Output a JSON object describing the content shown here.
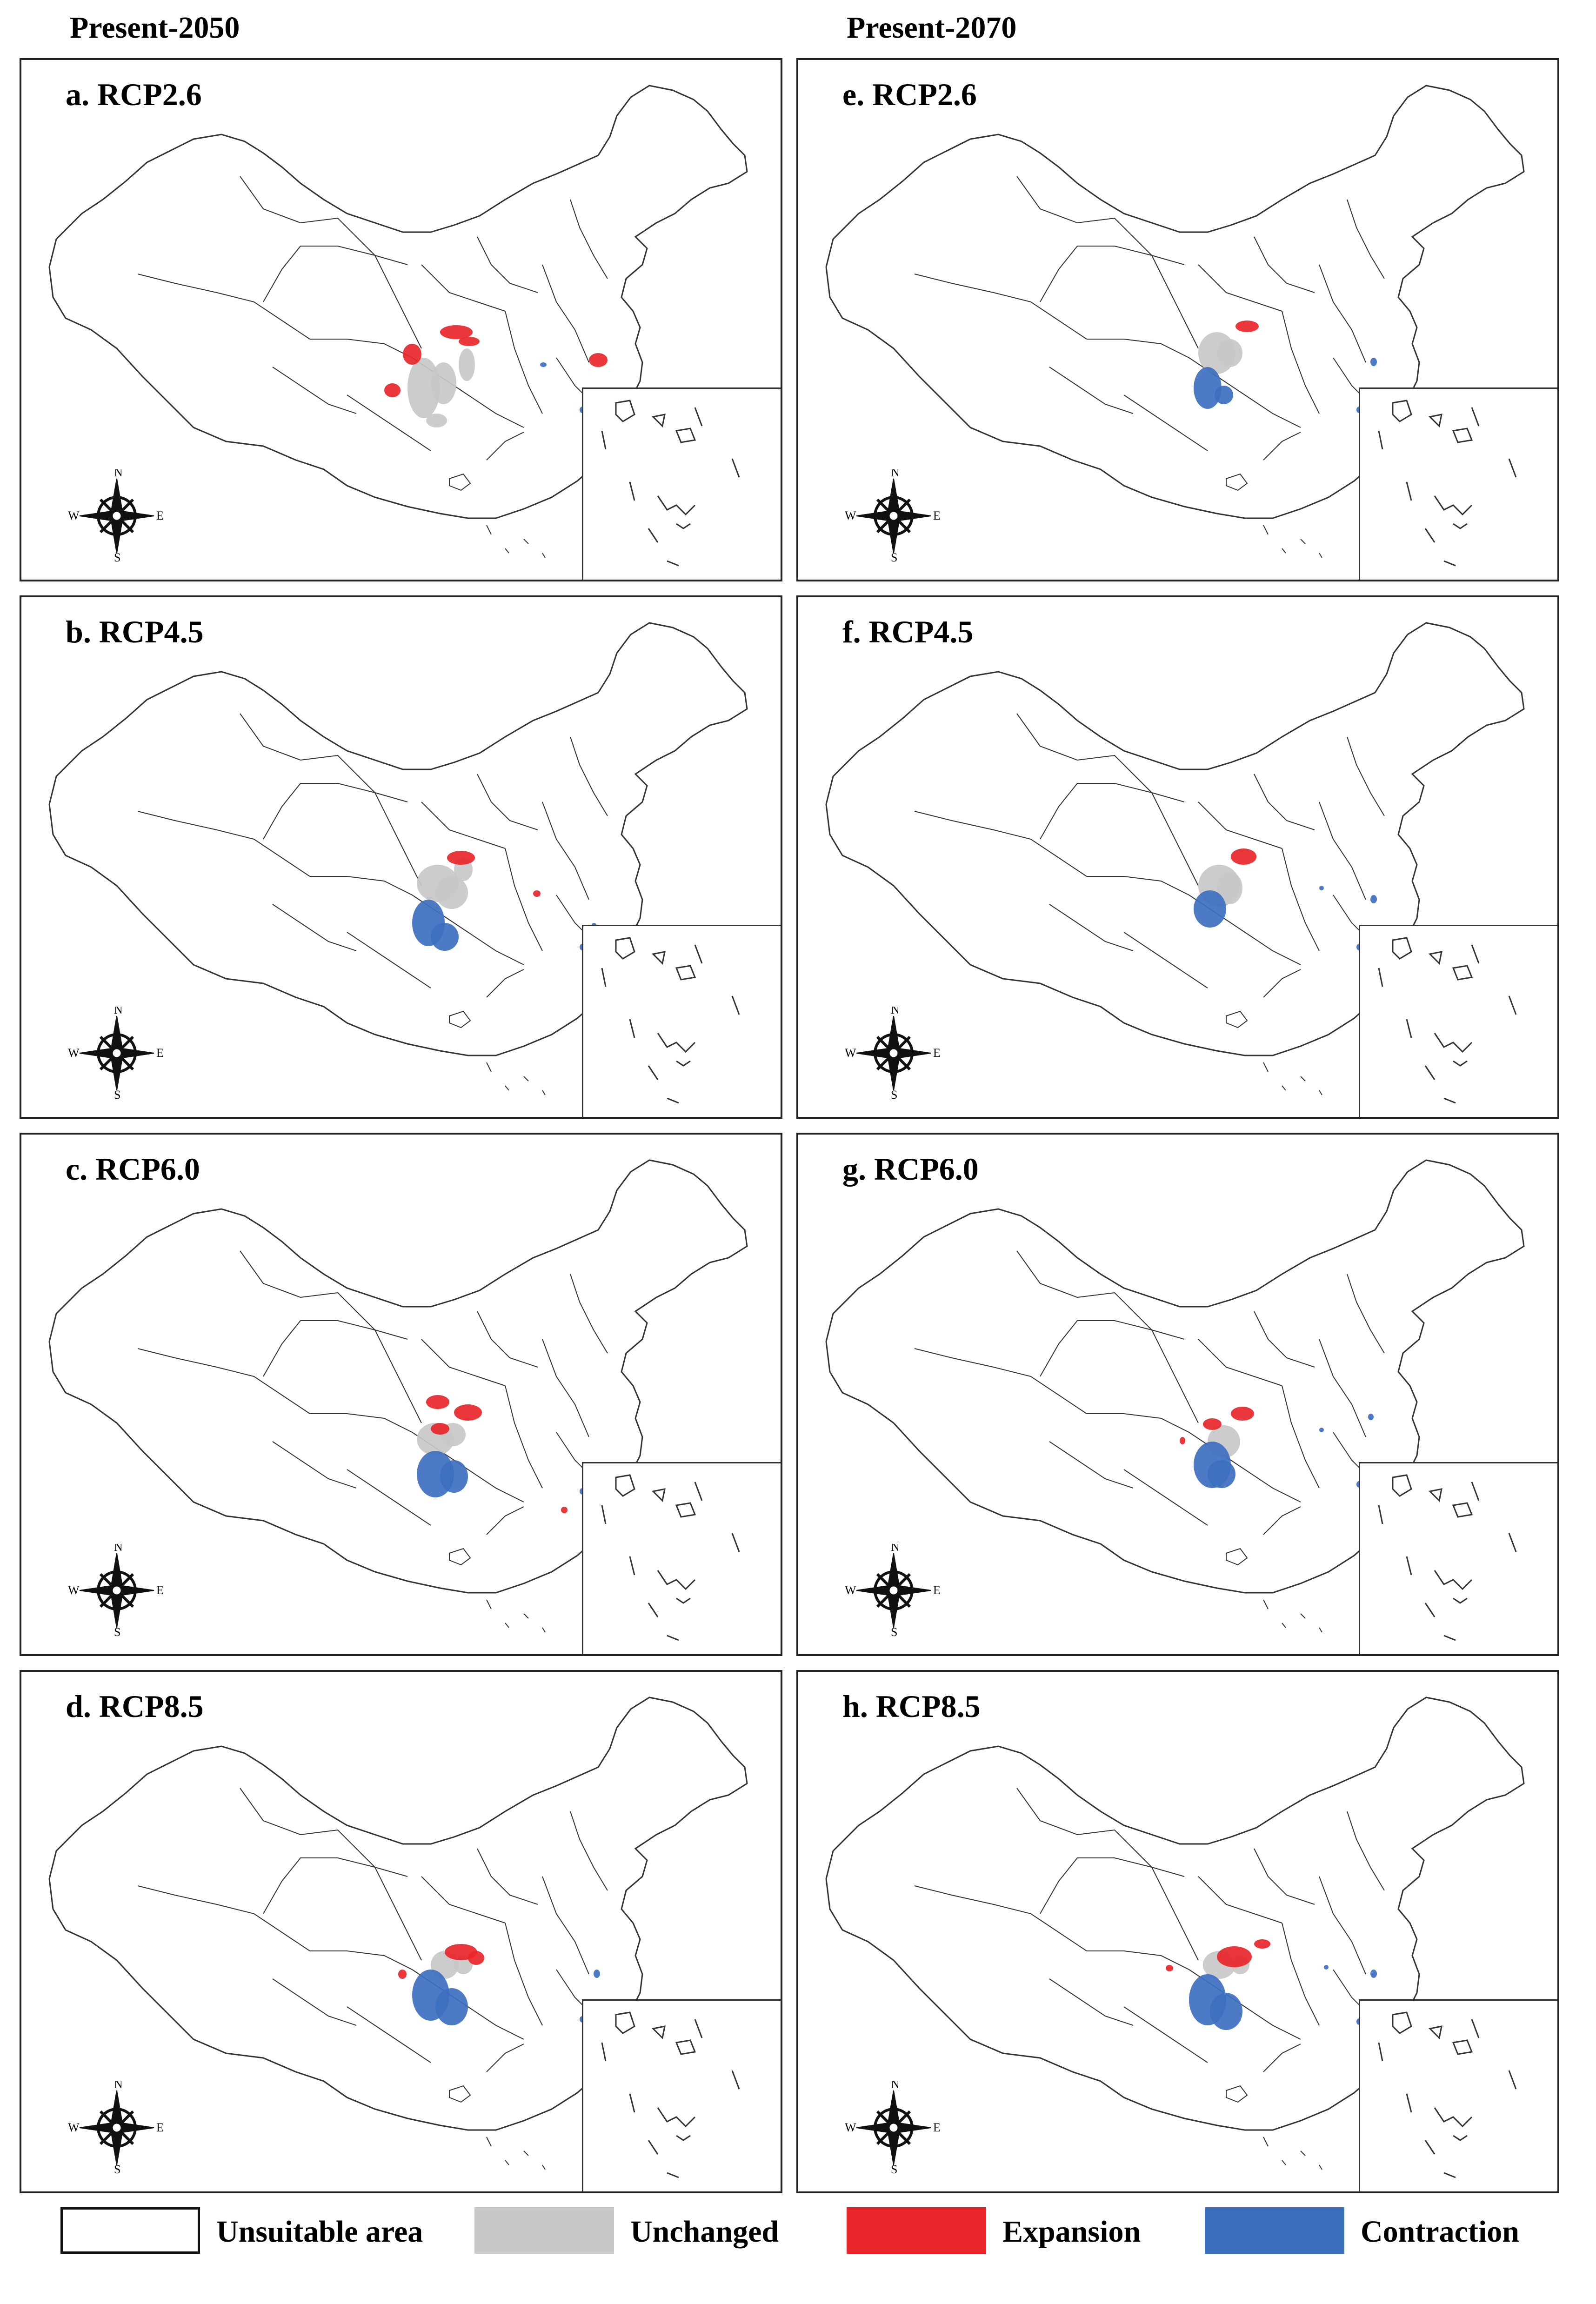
{
  "columns": {
    "left_title": "Present-2050",
    "right_title": "Present-2070"
  },
  "panels": [
    {
      "label": "a. RCP2.6",
      "scenario": "RCP2.6",
      "period": "Present-2050",
      "expansion": "moderate",
      "contraction": "small"
    },
    {
      "label": "b. RCP4.5",
      "scenario": "RCP4.5",
      "period": "Present-2050",
      "expansion": "small",
      "contraction": "moderate"
    },
    {
      "label": "c. RCP6.0",
      "scenario": "RCP6.0",
      "period": "Present-2050",
      "expansion": "moderate",
      "contraction": "moderate"
    },
    {
      "label": "d. RCP8.5",
      "scenario": "RCP8.5",
      "period": "Present-2050",
      "expansion": "moderate",
      "contraction": "large"
    },
    {
      "label": "e. RCP2.6",
      "scenario": "RCP2.6",
      "period": "Present-2070",
      "expansion": "small",
      "contraction": "moderate"
    },
    {
      "label": "f. RCP4.5",
      "scenario": "RCP4.5",
      "period": "Present-2070",
      "expansion": "small",
      "contraction": "small"
    },
    {
      "label": "g. RCP6.0",
      "scenario": "RCP6.0",
      "period": "Present-2070",
      "expansion": "moderate",
      "contraction": "moderate"
    },
    {
      "label": "h. RCP8.5",
      "scenario": "RCP8.5",
      "period": "Present-2070",
      "expansion": "moderate",
      "contraction": "large"
    }
  ],
  "compass": {
    "n": "N",
    "s": "S",
    "e": "E",
    "w": "W"
  },
  "legend": [
    {
      "label": "Unsuitable area",
      "color": "#ffffff"
    },
    {
      "label": "Unchanged",
      "color": "#c8c8c8"
    },
    {
      "label": "Expansion",
      "color": "#e8262b"
    },
    {
      "label": "Contraction",
      "color": "#3d6fbf"
    }
  ],
  "colors": {
    "unsuitable": "#ffffff",
    "unchanged": "#c8c8c8",
    "expansion": "#e8262b",
    "contraction": "#3d6fbf",
    "boundary": "#333333"
  },
  "icons": [
    "compass-rose-icon"
  ]
}
